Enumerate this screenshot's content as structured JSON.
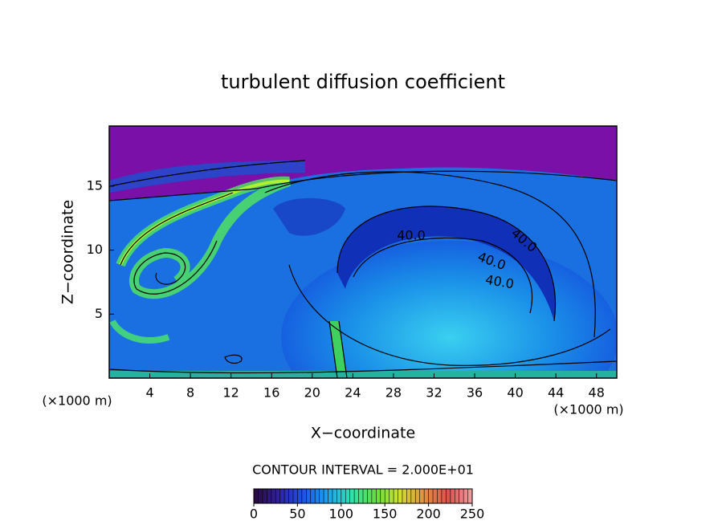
{
  "chart_data": {
    "type": "contour",
    "title": "turbulent diffusion coefficient",
    "xlabel": "X−coordinate",
    "ylabel": "Z−coordinate",
    "x_unit": "(×1000 m)",
    "xlim": [
      0,
      50
    ],
    "ylim": [
      0,
      19.7
    ],
    "xticks": [
      4,
      8,
      12,
      16,
      20,
      24,
      28,
      32,
      36,
      40,
      44,
      48
    ],
    "yticks": [
      5,
      10,
      15
    ],
    "contour_interval": "CONTOUR INTERVAL = 2.000E+01",
    "contour_labels": [
      {
        "value": 40,
        "label": "40.0"
      },
      {
        "value": 40,
        "label": "40.0"
      },
      {
        "value": 40,
        "label": "40.0"
      },
      {
        "value": 40,
        "label": "40.0"
      }
    ],
    "clim": [
      0,
      250
    ],
    "cticks": [
      0,
      50,
      100,
      150,
      200,
      250
    ],
    "colormap": [
      "#2a0a3a",
      "#3020a0",
      "#1e50e8",
      "#1aa0f0",
      "#30e0b0",
      "#60e040",
      "#d0e030",
      "#e09040",
      "#e05050",
      "#f0a0a0"
    ]
  }
}
